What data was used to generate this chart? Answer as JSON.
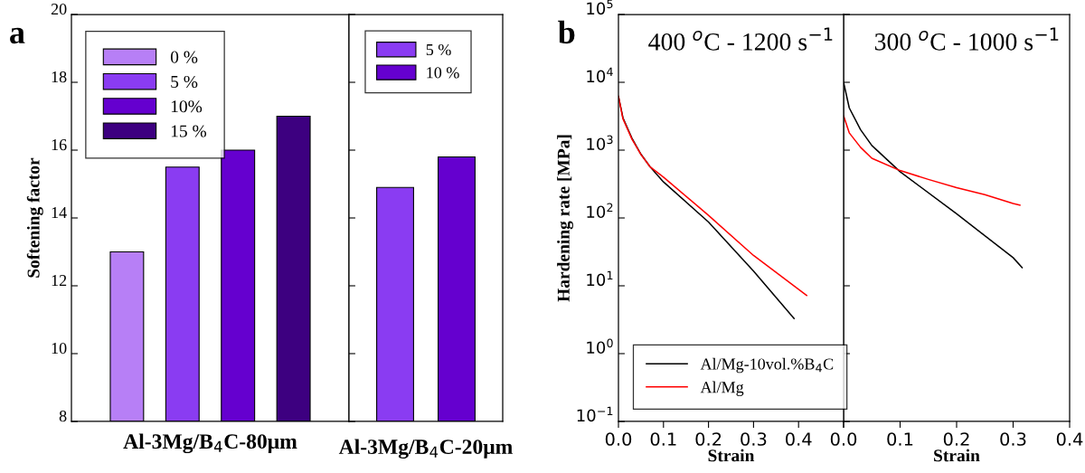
{
  "chart_data": [
    {
      "type": "bar",
      "annotations": [
        "a"
      ],
      "ylabel": "Softening factor",
      "xlabel": "Al-3Mg/B$_{4}$C-80μm",
      "categories": [
        null,
        null,
        null,
        null
      ],
      "ylim": [
        8,
        20
      ],
      "yticks": [
        8,
        10,
        12,
        14,
        16,
        18,
        20
      ],
      "legend": "top left",
      "grid": false,
      "series": [
        {
          "name": "0 %",
          "color": "#b77ff6",
          "values": [
            13,
            null,
            null,
            null
          ]
        },
        {
          "name": "5 %",
          "color": "#8a3cf2",
          "values": [
            null,
            15.5,
            null,
            null
          ]
        },
        {
          "name": "10%",
          "color": "#6500cf",
          "values": [
            null,
            null,
            16,
            null
          ]
        },
        {
          "name": "15 %",
          "color": "#3d0080",
          "values": [
            null,
            null,
            null,
            17
          ]
        }
      ]
    },
    {
      "type": "bar",
      "categories": [
        "Al-3Mg/B$_{4}$C-20μm"
      ],
      "ylim": [
        8,
        20
      ],
      "yticks": [
        8,
        10,
        12,
        14,
        16,
        18,
        20
      ],
      "tick_labels": "x",
      "legend": "top",
      "grid": false,
      "series": [
        {
          "name": "5 %",
          "color": "#8a3cf2",
          "values": [
            14.9
          ]
        },
        {
          "name": "10 %",
          "color": "#6500cf",
          "values": [
            15.8
          ]
        }
      ]
    },
    {
      "type": "line",
      "annotations": [
        "b"
      ],
      "title": "400 $^{o}$C - 1200 s$^{−1}$",
      "xlabel": "Strain",
      "ylabel": "Hardening rate [MPa]",
      "log": "y",
      "xlim": [
        0,
        0.5
      ],
      "xticks": [
        {
          "value": 0,
          "label": "0.0"
        },
        {
          "value": 0.1,
          "label": "0.1"
        },
        {
          "value": 0.2,
          "label": "0.2"
        },
        {
          "value": 0.3,
          "label": "0.3"
        },
        {
          "value": 0.4,
          "label": "0.4"
        },
        {
          "value": 0.5,
          "label": null
        }
      ],
      "ylim": [
        0.1,
        100000
      ],
      "yticks": [
        {
          "value": 0.1,
          "label": "10$^{−1}$"
        },
        {
          "value": 1,
          "label": "10$^{0}$"
        },
        {
          "value": 10,
          "label": "10$^{1}$"
        },
        {
          "value": 100,
          "label": "10$^{2}$"
        },
        {
          "value": 1000,
          "label": "10$^{3}$"
        },
        {
          "value": 10000,
          "label": "10$^{4}$"
        },
        {
          "value": 100000,
          "label": "10$^{5}$"
        }
      ],
      "legend": "bottom left",
      "grid": false,
      "marker": "none",
      "line_style": "solid",
      "series": [
        {
          "name": "Al/Mg-10vol.%B$_{4}$C",
          "color": "#000000",
          "x": [
            0,
            0.01,
            0.03,
            0.05,
            0.07,
            0.1,
            0.2,
            0.3,
            0.39
          ],
          "values": [
            6200,
            3000,
            1500,
            870,
            570,
            340,
            87,
            16.5,
            3.3
          ]
        },
        {
          "name": "Al/Mg",
          "color": "#ff0000",
          "x": [
            0,
            0.01,
            0.03,
            0.05,
            0.07,
            0.1,
            0.2,
            0.3,
            0.418
          ],
          "values": [
            6200,
            2900,
            1450,
            860,
            570,
            400,
            109,
            28,
            7.2
          ]
        }
      ]
    },
    {
      "type": "line",
      "title": "300 $^{o}$C - 1000 s$^{−1}$",
      "xlabel": "Strain",
      "log": "y",
      "xlim": [
        0,
        0.4
      ],
      "xticks": [
        {
          "value": 0,
          "label": "0.0"
        },
        {
          "value": 0.1,
          "label": "0.1"
        },
        {
          "value": 0.2,
          "label": "0.2"
        },
        {
          "value": 0.3,
          "label": "0.3"
        },
        {
          "value": 0.4,
          "label": "0.4"
        }
      ],
      "ylim": [
        0.1,
        100000
      ],
      "yticks": [
        {
          "value": 0.1,
          "label": null
        },
        {
          "value": 1,
          "label": null
        },
        {
          "value": 10,
          "label": null
        },
        {
          "value": 100,
          "label": null
        },
        {
          "value": 1000,
          "label": null
        },
        {
          "value": 10000,
          "label": null
        },
        {
          "value": 100000,
          "label": null
        }
      ],
      "tick_labels": "x",
      "grid": false,
      "marker": "none",
      "line_style": "solid",
      "series": [
        {
          "color": "#000000",
          "x": [
            0,
            0.01,
            0.03,
            0.05,
            0.1,
            0.2,
            0.3,
            0.316
          ],
          "values": [
            10000,
            4200,
            2000,
            1170,
            480,
            115,
            26,
            18.5
          ]
        },
        {
          "color": "#ff0000",
          "x": [
            0,
            0.01,
            0.03,
            0.05,
            0.1,
            0.15,
            0.2,
            0.25,
            0.3,
            0.312
          ],
          "values": [
            3200,
            1800,
            1100,
            760,
            500,
            370,
            280,
            220,
            163,
            155
          ]
        }
      ]
    }
  ]
}
